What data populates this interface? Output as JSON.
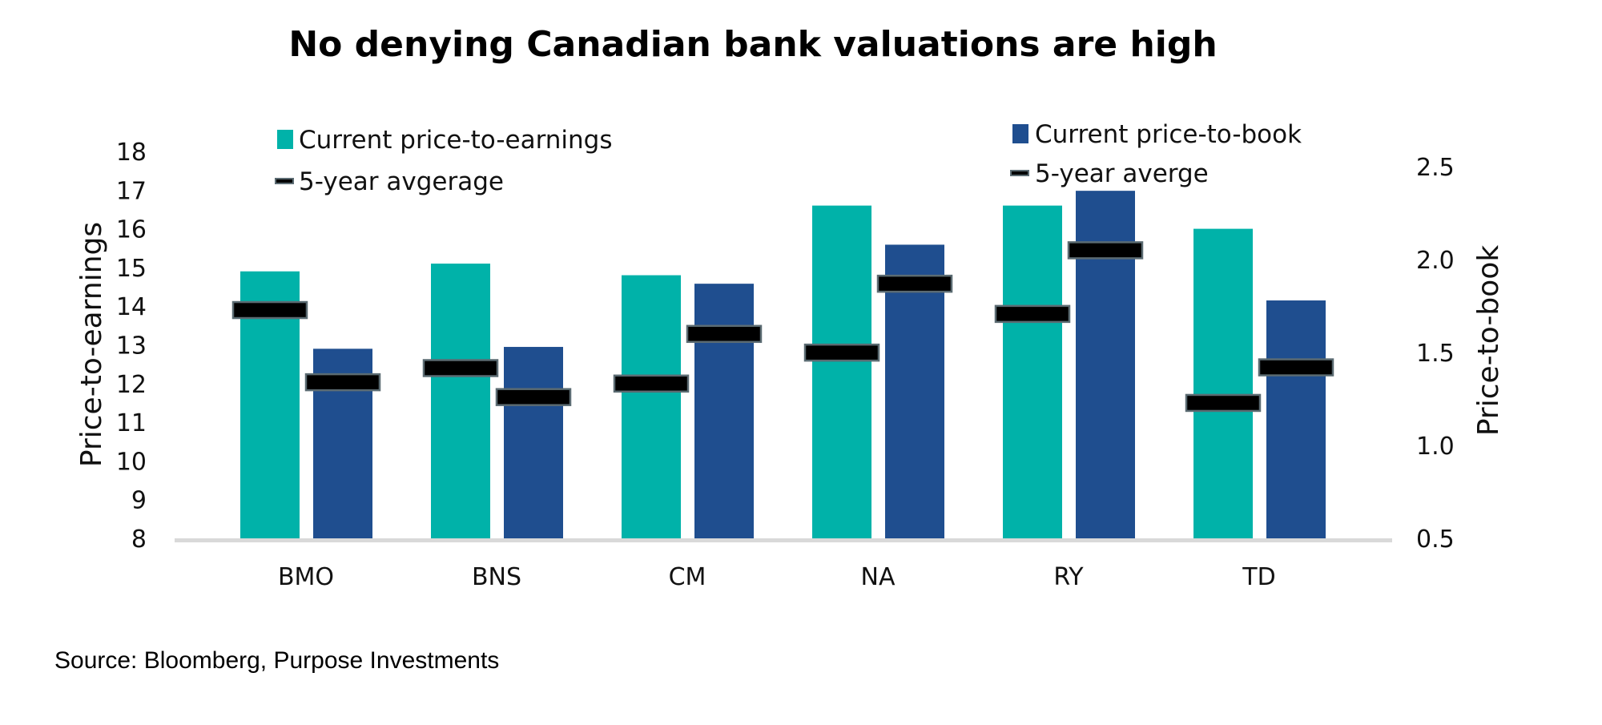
{
  "chart_data": {
    "type": "bar",
    "title": "No denying Canadian bank valuations are high",
    "source": "Source: Bloomberg, Purpose Investments",
    "categories": [
      "BMO",
      "BNS",
      "CM",
      "NA",
      "RY",
      "TD"
    ],
    "series": [
      {
        "name": "Current price-to-earnings",
        "axis": "left",
        "kind": "bar",
        "color": "#00B2A9",
        "values": [
          14.9,
          15.1,
          14.8,
          16.6,
          16.6,
          16.0
        ]
      },
      {
        "name": "5-year avgerage",
        "axis": "left",
        "kind": "marker",
        "color": "#000000",
        "values": [
          13.9,
          12.4,
          12.0,
          12.8,
          13.8,
          11.5
        ]
      },
      {
        "name": "Current price-to-book",
        "axis": "right",
        "kind": "bar",
        "color": "#1F4E8F",
        "values": [
          1.52,
          1.53,
          1.87,
          2.08,
          2.37,
          1.78
        ]
      },
      {
        "name": "5-year averge",
        "axis": "right",
        "kind": "marker",
        "color": "#000000",
        "values": [
          1.34,
          1.26,
          1.6,
          1.87,
          2.05,
          1.42
        ]
      }
    ],
    "left_axis": {
      "label": "Price-to-earnings",
      "ylim": [
        8,
        18
      ],
      "ticks": [
        "8",
        "9",
        "10",
        "11",
        "12",
        "13",
        "14",
        "15",
        "16",
        "17",
        "18"
      ]
    },
    "right_axis": {
      "label": "Price-to-book",
      "ylim": [
        0.5,
        2.57
      ],
      "ticks": [
        "0.5",
        "1.0",
        "1.5",
        "2.0",
        "2.5"
      ]
    },
    "grid": false,
    "legend": "top"
  }
}
